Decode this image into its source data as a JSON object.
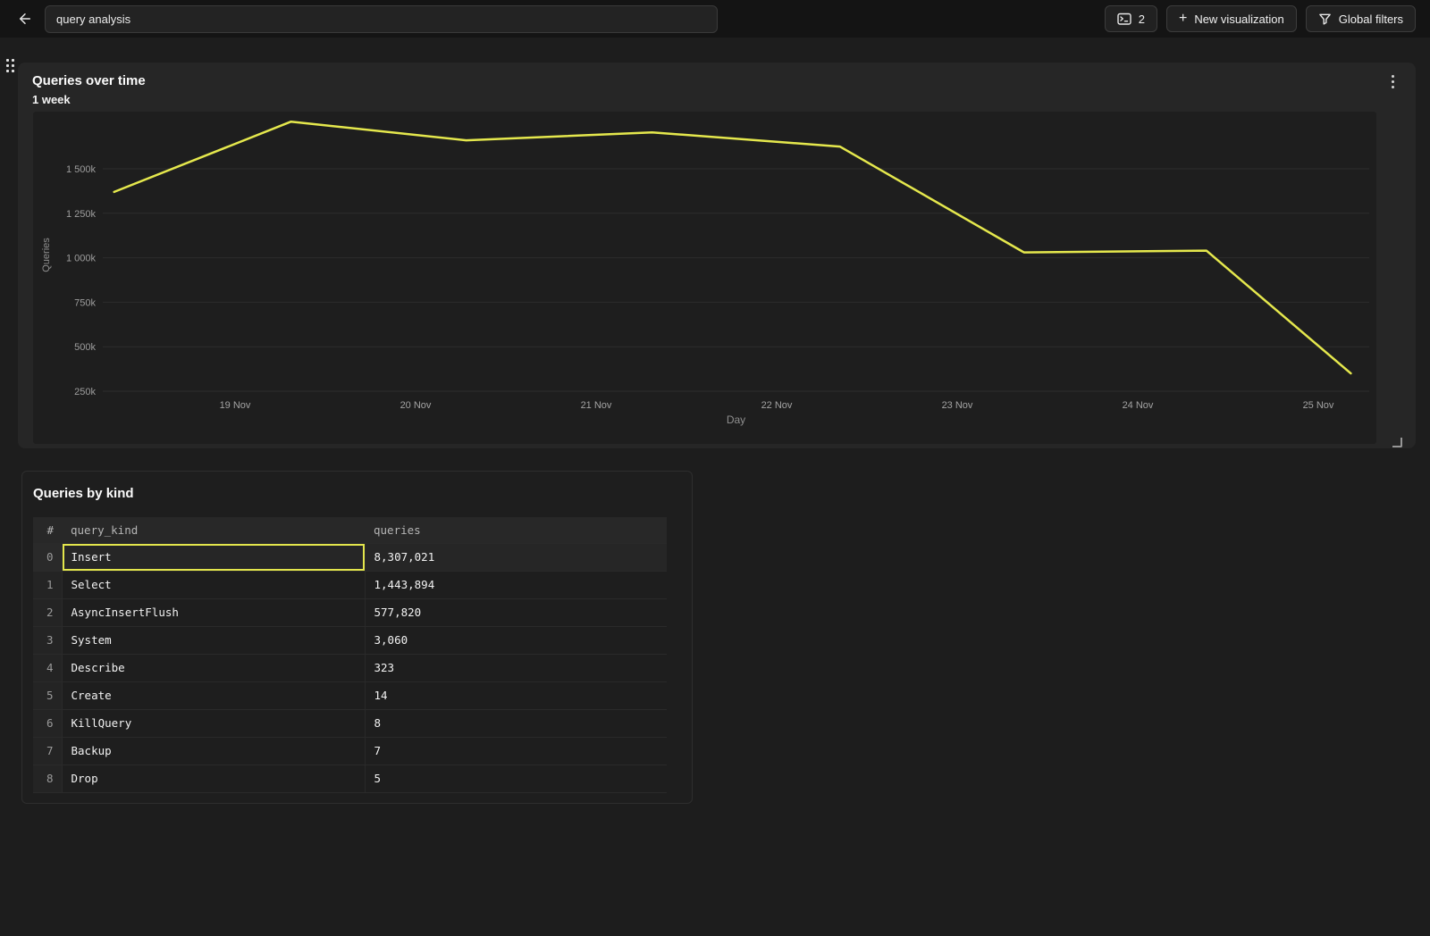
{
  "topbar": {
    "back_icon": "arrow-left-icon",
    "title_input": {
      "value": "query analysis"
    },
    "pages_button": {
      "icon": "console-window-icon",
      "count": "2"
    },
    "new_visualization_button": {
      "icon": "plus-icon",
      "label": "New visualization"
    },
    "global_filters_button": {
      "icon": "funnel-icon",
      "label": "Global filters"
    }
  },
  "chart_panel": {
    "title": "Queries over time",
    "subtitle": "1 week",
    "menu_icon": "kebab-menu-icon",
    "drag_icon": "drag-handle-dots-icon",
    "resize_icon": "resize-corner-icon"
  },
  "chart_data": {
    "type": "line",
    "title": "Queries over time",
    "subtitle": "1 week",
    "xlabel": "Day",
    "ylabel": "Queries",
    "line_color": "#e5e84d",
    "grid": true,
    "legend": false,
    "ylim": [
      0,
      1830000
    ],
    "y_ticks": [
      {
        "value": 1500000,
        "label": "1 500k"
      },
      {
        "value": 1250000,
        "label": "1 250k"
      },
      {
        "value": 1000000,
        "label": "1 000k"
      },
      {
        "value": 750000,
        "label": "750k"
      },
      {
        "value": 500000,
        "label": "500k"
      },
      {
        "value": 250000,
        "label": "250k"
      }
    ],
    "x_ticks": [
      {
        "day": 19,
        "label": "19 Nov"
      },
      {
        "day": 20,
        "label": "20 Nov"
      },
      {
        "day": 21,
        "label": "21 Nov"
      },
      {
        "day": 22,
        "label": "22 Nov"
      },
      {
        "day": 23,
        "label": "23 Nov"
      },
      {
        "day": 24,
        "label": "24 Nov"
      },
      {
        "day": 25,
        "label": "25 Nov"
      }
    ],
    "points": [
      {
        "x_day": 18.33,
        "value": 1370000
      },
      {
        "x_day": 19.31,
        "value": 1765000
      },
      {
        "x_day": 20.28,
        "value": 1660000
      },
      {
        "x_day": 21.31,
        "value": 1705000
      },
      {
        "x_day": 22.35,
        "value": 1625000
      },
      {
        "x_day": 23.37,
        "value": 1030000
      },
      {
        "x_day": 24.38,
        "value": 1040000
      },
      {
        "x_day": 25.18,
        "value": 350000
      }
    ]
  },
  "table_panel": {
    "title": "Queries by kind",
    "columns": [
      "#",
      "query_kind",
      "queries"
    ],
    "rows": [
      {
        "index": "0",
        "query_kind": "Insert",
        "queries": "8,307,021",
        "selected": true
      },
      {
        "index": "1",
        "query_kind": "Select",
        "queries": "1,443,894",
        "selected": false
      },
      {
        "index": "2",
        "query_kind": "AsyncInsertFlush",
        "queries": "577,820",
        "selected": false
      },
      {
        "index": "3",
        "query_kind": "System",
        "queries": "3,060",
        "selected": false
      },
      {
        "index": "4",
        "query_kind": "Describe",
        "queries": "323",
        "selected": false
      },
      {
        "index": "5",
        "query_kind": "Create",
        "queries": "14",
        "selected": false
      },
      {
        "index": "6",
        "query_kind": "KillQuery",
        "queries": "8",
        "selected": false
      },
      {
        "index": "7",
        "query_kind": "Backup",
        "queries": "7",
        "selected": false
      },
      {
        "index": "8",
        "query_kind": "Drop",
        "queries": "5",
        "selected": false
      }
    ]
  },
  "colors": {
    "accent_line": "#e5e84d",
    "selection_border": "#e3e64c",
    "page_bg": "#1d1d1d",
    "topbar_bg": "#141414",
    "panel_bg": "#262626",
    "plot_bg": "#1e1e1e",
    "gridline": "#2d2d2d",
    "axis_text": "#a0a0a0"
  }
}
